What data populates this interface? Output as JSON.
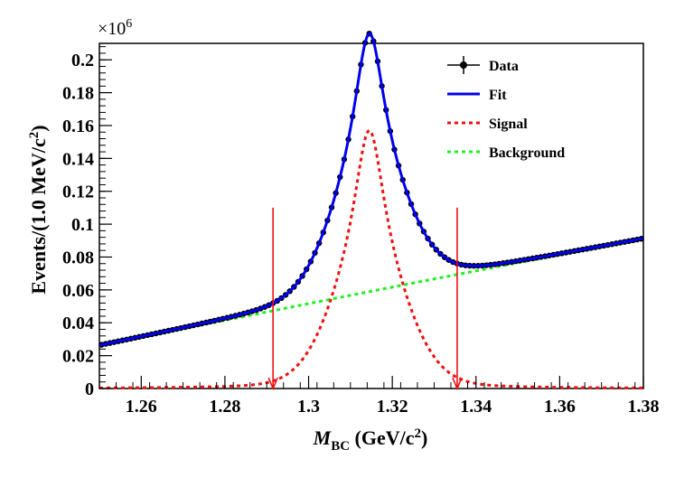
{
  "chart_data": {
    "type": "line",
    "title": "",
    "xlabel_main": "M",
    "xlabel_sub": "BC",
    "xlabel_rest": " (GeV/c",
    "xlabel_sup": "2",
    "xlabel_close": ")",
    "ylabel_main": "Events/(1.0 MeV/c",
    "ylabel_sup": "2",
    "ylabel_close": ")",
    "y_multiplier_base": "×10",
    "y_multiplier_exp": "6",
    "xlim": [
      1.25,
      1.38
    ],
    "ylim": [
      0,
      0.21
    ],
    "x_ticks": [
      1.26,
      1.28,
      1.3,
      1.32,
      1.34,
      1.36,
      1.38
    ],
    "x_tick_labels": [
      "1.26",
      "1.28",
      "1.3",
      "1.32",
      "1.34",
      "1.36",
      "1.38"
    ],
    "y_ticks": [
      0,
      0.02,
      0.04,
      0.06,
      0.08,
      0.1,
      0.12,
      0.14,
      0.16,
      0.18,
      0.2
    ],
    "y_tick_labels": [
      "0",
      "0.02",
      "0.04",
      "0.06",
      "0.08",
      "0.1",
      "0.12",
      "0.14",
      "0.16",
      "0.18",
      "0.2"
    ],
    "model": {
      "background": {
        "x0": 1.25,
        "y0": 0.026,
        "x1": 1.38,
        "y1": 0.091,
        "curvature": 0.0007
      },
      "signal": {
        "peak": 1.3145,
        "amplitude": 0.157,
        "sigma": 0.0042,
        "tail_sigma": 0.0085,
        "tail_fraction": 0.0
      },
      "data_step": 0.001
    },
    "cut_markers": [
      {
        "x": 1.2915,
        "y_top": 0.11
      },
      {
        "x": 1.3355,
        "y_top": 0.11
      }
    ],
    "legend": {
      "position": "top-right",
      "entries": [
        {
          "label": "Data",
          "style": "data"
        },
        {
          "label": "Fit",
          "style": "fit"
        },
        {
          "label": "Signal",
          "style": "signal"
        },
        {
          "label": "Background",
          "style": "background"
        }
      ]
    },
    "colors": {
      "data": "#000000",
      "fit": "#0000ee",
      "signal": "#ee1111",
      "background": "#22ee22",
      "arrow": "#ee1111"
    }
  }
}
